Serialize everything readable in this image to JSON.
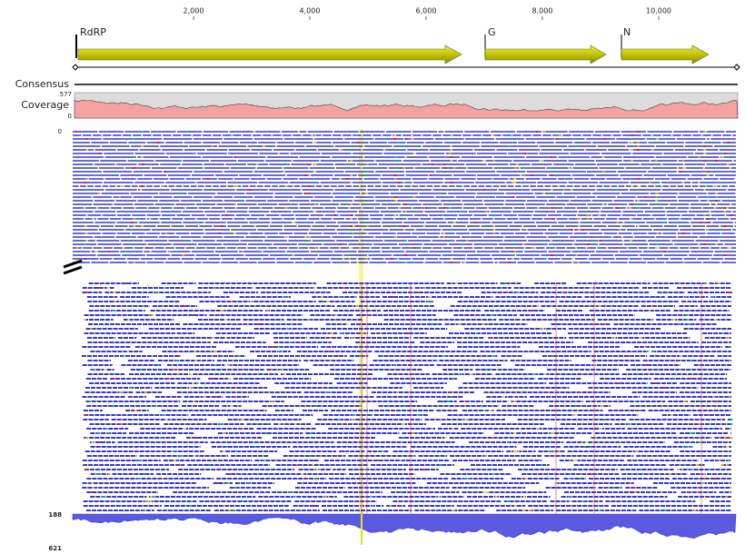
{
  "ruler": {
    "ticks": [
      {
        "value": 2000,
        "label": "2,000"
      },
      {
        "value": 4000,
        "label": "4,000"
      },
      {
        "value": 6000,
        "label": "6,000"
      },
      {
        "value": 8000,
        "label": "8,000"
      },
      {
        "value": 10000,
        "label": "10,000"
      }
    ]
  },
  "genes": [
    {
      "label": "RdRP"
    },
    {
      "label": "G"
    },
    {
      "label": "N"
    }
  ],
  "tracks": {
    "consensus": "Consensus",
    "coverage": "Coverage",
    "coverage_max": "577",
    "coverage_min": "0"
  },
  "reads": {
    "top_label": "0",
    "bottom_labels": [
      "188",
      "621"
    ]
  }
}
